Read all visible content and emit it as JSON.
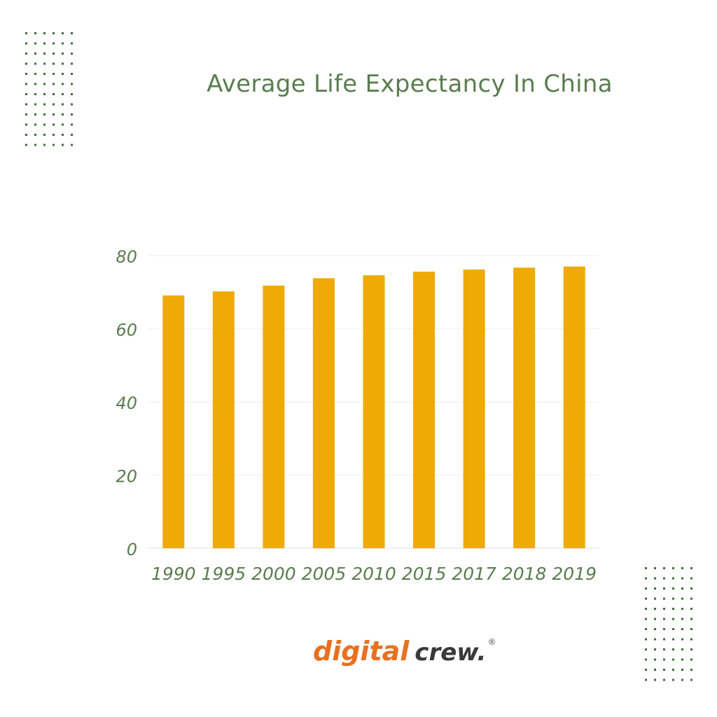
{
  "colors": {
    "bar": "#efaa06",
    "text_green": "#5a7d4f",
    "dot_green": "#3b6e35",
    "grid": "#eeeeee",
    "logo_orange": "#e8711f",
    "logo_dark": "#3a3a3a"
  },
  "logo": {
    "word1": "digital",
    "word2": "crew.",
    "registered": "®"
  },
  "chart_data": {
    "type": "bar",
    "title": "Average Life Expectancy In China",
    "xlabel": "",
    "ylabel": "",
    "categories": [
      "1990",
      "1995",
      "2000",
      "2005",
      "2010",
      "2015",
      "2017",
      "2018",
      "2019"
    ],
    "values": [
      69.1,
      70.2,
      71.8,
      73.8,
      74.6,
      75.6,
      76.2,
      76.7,
      77.0
    ],
    "ylim": [
      0,
      80
    ],
    "yticks": [
      "0",
      "20",
      "40",
      "60",
      "80"
    ],
    "grid": true,
    "legend": "none"
  }
}
